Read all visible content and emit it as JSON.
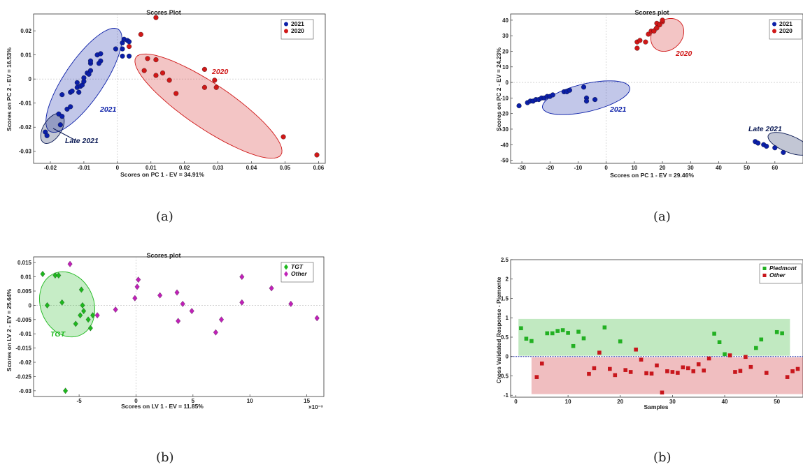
{
  "captions": [
    "(a)",
    "(a)",
    "(b)",
    "(b)"
  ],
  "chart_data": [
    {
      "type": "scatter",
      "title": "Scores Plot",
      "xlabel": "Scores on PC 1 - EV = 34.91%",
      "ylabel": "Scores on PC 2 - EV = 16.53%",
      "xlim": [
        -0.025,
        0.062
      ],
      "ylim": [
        -0.035,
        0.027
      ],
      "xticks": [
        -0.02,
        -0.01,
        0,
        0.01,
        0.02,
        0.03,
        0.04,
        0.05,
        0.06
      ],
      "xticklabels": [
        "-0.02",
        "-0.01",
        "0",
        "0.01",
        "0.02",
        "0.03",
        "0.04",
        "0.05",
        "0.06"
      ],
      "yticks": [
        0.02,
        0.01,
        0,
        -0.01,
        -0.02,
        -0.03
      ],
      "yticklabels": [
        "0.02",
        "0.01",
        "0",
        "-0.01",
        "-0.02",
        "-0.03"
      ],
      "legend": {
        "position": "top-right",
        "italic": false
      },
      "series": [
        {
          "name": "2021",
          "color": "#0b1fa8",
          "marker": "circle",
          "points": [
            [
              -0.0215,
              -0.022
            ],
            [
              -0.021,
              -0.0235
            ],
            [
              -0.0175,
              -0.0145
            ],
            [
              -0.017,
              -0.019
            ],
            [
              -0.0165,
              -0.0155
            ],
            [
              -0.0165,
              -0.0065
            ],
            [
              -0.015,
              -0.0125
            ],
            [
              -0.014,
              -0.0115
            ],
            [
              -0.014,
              -0.0055
            ],
            [
              -0.0135,
              -0.005
            ],
            [
              -0.012,
              -0.0035
            ],
            [
              -0.012,
              -0.0015
            ],
            [
              -0.0115,
              -0.0055
            ],
            [
              -0.011,
              -0.003
            ],
            [
              -0.0105,
              -0.0025
            ],
            [
              -0.01,
              -0.001
            ],
            [
              -0.01,
              0.0005
            ],
            [
              -0.009,
              0.0025
            ],
            [
              -0.0085,
              0.002
            ],
            [
              -0.008,
              0.0035
            ],
            [
              -0.008,
              0.0065
            ],
            [
              -0.008,
              0.0075
            ],
            [
              -0.006,
              0.01
            ],
            [
              -0.005,
              0.0105
            ],
            [
              -0.005,
              0.0075
            ],
            [
              -0.0055,
              0.0065
            ],
            [
              -0.0005,
              0.0125
            ],
            [
              0.0015,
              0.0095
            ],
            [
              0.0015,
              0.015
            ],
            [
              0.002,
              0.0165
            ],
            [
              0.003,
              0.016
            ],
            [
              0.0035,
              0.0155
            ],
            [
              0.0035,
              0.0095
            ],
            [
              0.0015,
              0.0125
            ]
          ]
        },
        {
          "name": "2020",
          "color": "#d01818",
          "marker": "circle",
          "points": [
            [
              0.0035,
              0.0135
            ],
            [
              0.007,
              0.0185
            ],
            [
              0.0115,
              0.0255
            ],
            [
              0.008,
              0.0035
            ],
            [
              0.009,
              0.0085
            ],
            [
              0.0115,
              0.008
            ],
            [
              0.0115,
              0.0015
            ],
            [
              0.0135,
              0.0025
            ],
            [
              0.0155,
              -0.0005
            ],
            [
              0.0175,
              -0.006
            ],
            [
              0.026,
              0.004
            ],
            [
              0.026,
              -0.0035
            ],
            [
              0.029,
              -0.0005
            ],
            [
              0.0295,
              -0.0035
            ],
            [
              0.0495,
              -0.024
            ],
            [
              0.0595,
              -0.0315
            ]
          ]
        }
      ],
      "ellipses": [
        {
          "label": "2021",
          "color": "#0b1fa8"
        },
        {
          "label": "Late 2021",
          "color": "#0b1a55"
        },
        {
          "label": "2020",
          "color": "#d01818"
        }
      ]
    },
    {
      "type": "scatter",
      "title": "Scores plot",
      "xlabel": "Scores on PC 1 - EV = 29.46%",
      "ylabel": "Scores on PC 2 - EV = 24.23%",
      "xlim": [
        -34,
        70
      ],
      "ylim": [
        -52,
        44
      ],
      "xticks": [
        -30,
        -20,
        -10,
        0,
        10,
        20,
        30,
        40,
        50,
        60
      ],
      "xticklabels": [
        "-30",
        "-20",
        "-10",
        "0",
        "10",
        "20",
        "30",
        "40",
        "50",
        "60"
      ],
      "yticks": [
        40,
        30,
        20,
        10,
        0,
        -10,
        -20,
        -30,
        -40,
        -50
      ],
      "yticklabels": [
        "40",
        "30",
        "20",
        "10",
        "0",
        "-10",
        "-20",
        "-30",
        "-40",
        "-50"
      ],
      "legend": {
        "position": "top-right",
        "italic": false
      },
      "series": [
        {
          "name": "2021",
          "color": "#0b1fa8",
          "marker": "circle",
          "points": [
            [
              -31,
              -15
            ],
            [
              -28,
              -13
            ],
            [
              -27,
              -12
            ],
            [
              -26,
              -12
            ],
            [
              -25,
              -11
            ],
            [
              -24,
              -11
            ],
            [
              -23,
              -10
            ],
            [
              -22,
              -10
            ],
            [
              -21,
              -9
            ],
            [
              -20,
              -9
            ],
            [
              -19,
              -8
            ],
            [
              -15,
              -6
            ],
            [
              -14,
              -6
            ],
            [
              -13,
              -5
            ],
            [
              -8,
              -3
            ],
            [
              -7,
              -10
            ],
            [
              -7,
              -12
            ],
            [
              -4,
              -11
            ],
            [
              53,
              -38
            ],
            [
              54,
              -39
            ],
            [
              56,
              -40
            ],
            [
              57,
              -41
            ],
            [
              60,
              -42
            ],
            [
              63,
              -45
            ]
          ]
        },
        {
          "name": "2020",
          "color": "#d01818",
          "marker": "circle",
          "points": [
            [
              11,
              22
            ],
            [
              11,
              26
            ],
            [
              12,
              27
            ],
            [
              14,
              26
            ],
            [
              15,
              31
            ],
            [
              16,
              33
            ],
            [
              17,
              33
            ],
            [
              18,
              35
            ],
            [
              18,
              38
            ],
            [
              19,
              37
            ],
            [
              20,
              39
            ],
            [
              20,
              40
            ]
          ]
        }
      ],
      "ellipses": [
        {
          "label": "2021",
          "color": "#0b1fa8"
        },
        {
          "label": "2020",
          "color": "#d01818"
        },
        {
          "label": "Late 2021",
          "color": "#0b1a55"
        }
      ]
    },
    {
      "type": "scatter",
      "title": "Scores plot",
      "xlabel": "Scores on LV 1 - EV = 11.85%",
      "ylabel": "Scores on LV 2 - EV = 25.64%",
      "xlim": [
        -9,
        16.5
      ],
      "ylim": [
        -0.032,
        0.017
      ],
      "xexponent": "×10⁻³",
      "xticks": [
        -5,
        0,
        5,
        10,
        15
      ],
      "xticklabels": [
        "-5",
        "0",
        "5",
        "10",
        "15"
      ],
      "yticks": [
        0.015,
        0.01,
        0.005,
        0,
        -0.005,
        -0.01,
        -0.015,
        -0.02,
        -0.025,
        -0.03
      ],
      "yticklabels": [
        "0.015",
        "0.01",
        "0.005",
        "0",
        "-0.005",
        "-0.01",
        "-0.015",
        "-0.02",
        "-0.025",
        "-0.03"
      ],
      "legend": {
        "position": "top-right",
        "italic": true
      },
      "series": [
        {
          "name": "TGT",
          "color": "#1db81d",
          "marker": "diamond",
          "points": [
            [
              -8.2,
              0.011
            ],
            [
              -7.1,
              0.0105
            ],
            [
              -6.8,
              0.0105
            ],
            [
              -7.8,
              0.0
            ],
            [
              -6.5,
              0.001
            ],
            [
              -4.8,
              0.0055
            ],
            [
              -4.7,
              0.0
            ],
            [
              -4.6,
              -0.002
            ],
            [
              -4.9,
              -0.0035
            ],
            [
              -4.2,
              -0.005
            ],
            [
              -3.8,
              -0.0035
            ],
            [
              -5.3,
              -0.0065
            ],
            [
              -4.0,
              -0.008
            ],
            [
              -6.2,
              -0.03
            ]
          ]
        },
        {
          "name": "Other",
          "color": "#c020b8",
          "marker": "diamond",
          "points": [
            [
              -5.8,
              0.0145
            ],
            [
              -3.4,
              -0.0035
            ],
            [
              -1.8,
              -0.0015
            ],
            [
              -0.1,
              0.0025
            ],
            [
              0.1,
              0.0065
            ],
            [
              0.2,
              0.009
            ],
            [
              2.1,
              0.0035
            ],
            [
              3.6,
              0.0045
            ],
            [
              3.7,
              -0.0055
            ],
            [
              4.1,
              0.0005
            ],
            [
              4.9,
              -0.002
            ],
            [
              7.0,
              -0.0095
            ],
            [
              7.5,
              -0.005
            ],
            [
              9.3,
              0.01
            ],
            [
              9.3,
              0.001
            ],
            [
              11.9,
              0.006
            ],
            [
              13.6,
              0.0005
            ],
            [
              15.9,
              -0.0045
            ]
          ]
        }
      ],
      "ellipses": [
        {
          "label": "TGT",
          "color": "#1db81d"
        }
      ]
    },
    {
      "type": "scatter",
      "title": "",
      "xlabel": "Samples",
      "ylabel": "Cross Validated Response - Piemonte",
      "xlim": [
        -1,
        55
      ],
      "ylim": [
        -1.05,
        2.5
      ],
      "xticks": [
        0,
        10,
        20,
        30,
        40,
        50
      ],
      "xticklabels": [
        "0",
        "10",
        "20",
        "30",
        "40",
        "50"
      ],
      "yticks": [
        2.5,
        2,
        1.5,
        1,
        0.5,
        0,
        -0.5,
        -1
      ],
      "yticklabels": [
        "2.5",
        "2",
        "1.5",
        "1",
        "0.5",
        "0",
        "-0.5",
        "-1"
      ],
      "legend": {
        "position": "top-right",
        "italic": true
      },
      "threshold": 0,
      "series": [
        {
          "name": "Piedmont",
          "color": "#22b022",
          "marker": "square",
          "points": [
            [
              1,
              0.73
            ],
            [
              2,
              0.46
            ],
            [
              3,
              0.4
            ],
            [
              6,
              0.6
            ],
            [
              7,
              0.6
            ],
            [
              8,
              0.66
            ],
            [
              9,
              0.68
            ],
            [
              10,
              0.61
            ],
            [
              11,
              0.27
            ],
            [
              12,
              0.64
            ],
            [
              13,
              0.47
            ],
            [
              17,
              0.75
            ],
            [
              20,
              0.39
            ],
            [
              38,
              0.59
            ],
            [
              39,
              0.37
            ],
            [
              40,
              0.06
            ],
            [
              46,
              0.22
            ],
            [
              47,
              0.44
            ],
            [
              50,
              0.63
            ],
            [
              51,
              0.6
            ]
          ]
        },
        {
          "name": "Other",
          "color": "#c8161c",
          "marker": "square",
          "points": [
            [
              4,
              -0.53
            ],
            [
              5,
              -0.18
            ],
            [
              14,
              -0.45
            ],
            [
              15,
              -0.3
            ],
            [
              16,
              0.1
            ],
            [
              18,
              -0.32
            ],
            [
              19,
              -0.48
            ],
            [
              21,
              -0.35
            ],
            [
              22,
              -0.4
            ],
            [
              23,
              0.18
            ],
            [
              24,
              -0.08
            ],
            [
              25,
              -0.43
            ],
            [
              26,
              -0.44
            ],
            [
              27,
              -0.23
            ],
            [
              28,
              -0.93
            ],
            [
              29,
              -0.38
            ],
            [
              30,
              -0.4
            ],
            [
              31,
              -0.42
            ],
            [
              32,
              -0.28
            ],
            [
              33,
              -0.3
            ],
            [
              34,
              -0.38
            ],
            [
              35,
              -0.2
            ],
            [
              36,
              -0.36
            ],
            [
              37,
              -0.05
            ],
            [
              41,
              0.03
            ],
            [
              42,
              -0.4
            ],
            [
              43,
              -0.37
            ],
            [
              44,
              -0.01
            ],
            [
              45,
              -0.27
            ],
            [
              48,
              -0.42
            ],
            [
              52,
              -0.53
            ],
            [
              53,
              -0.38
            ],
            [
              54,
              -0.32
            ]
          ]
        }
      ],
      "bands": [
        {
          "name": "Piedmont",
          "color": "#22b022"
        },
        {
          "name": "Other",
          "color": "#c8161c"
        }
      ]
    }
  ]
}
